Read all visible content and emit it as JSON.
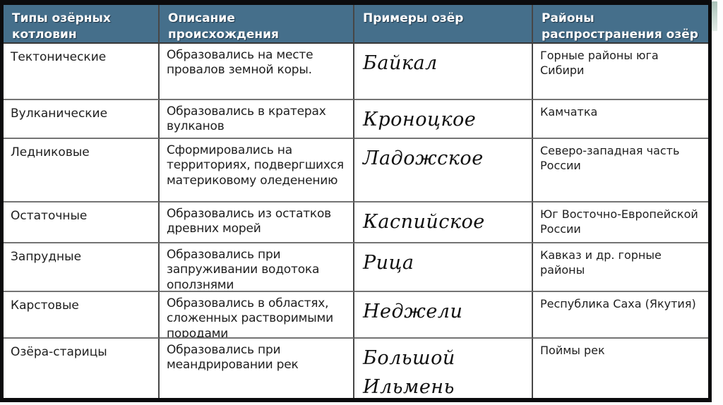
{
  "table": {
    "header_bg": "#456f8b",
    "outer_border_color": "#0b0b0d",
    "headers": {
      "types": "Типы озёрных котловин",
      "description": "Описание происхождения",
      "examples": "Примеры озёр",
      "regions": "Районы распространения озёр"
    },
    "rows": [
      {
        "type": "Тектонические",
        "description": "Образовались на месте провалов земной коры.",
        "example": "Байкал",
        "region": "Горные районы юга Сибири"
      },
      {
        "type": "Вулканические",
        "description": "Образовались в кратерах вулканов",
        "example": "Кроноцкое",
        "region": "Камчатка"
      },
      {
        "type": "Ледниковые",
        "description": "Сформировались на территориях, подвергшихся материковому оледенению",
        "example": "Ладожское",
        "region": "Северо-западная часть России"
      },
      {
        "type": "Остаточные",
        "description": "Образовались из остатков древних морей",
        "example": "Каспийское",
        "region": "Юг Восточно-Европейской России"
      },
      {
        "type": "Запрудные",
        "description": "Образовались при запруживании водотока оползнями",
        "example": "Рица",
        "region": "Кавказ и др. горные районы"
      },
      {
        "type": "Карстовые",
        "description": "Образовались в областях, сложенных растворимыми породами",
        "example": "Неджели",
        "region": "Республика Саха (Якутия)"
      },
      {
        "type": "Озёра-старицы",
        "description": "Образовались при меандрировании рек",
        "example": "Большой Ильмень",
        "region": "Поймы рек"
      }
    ]
  }
}
